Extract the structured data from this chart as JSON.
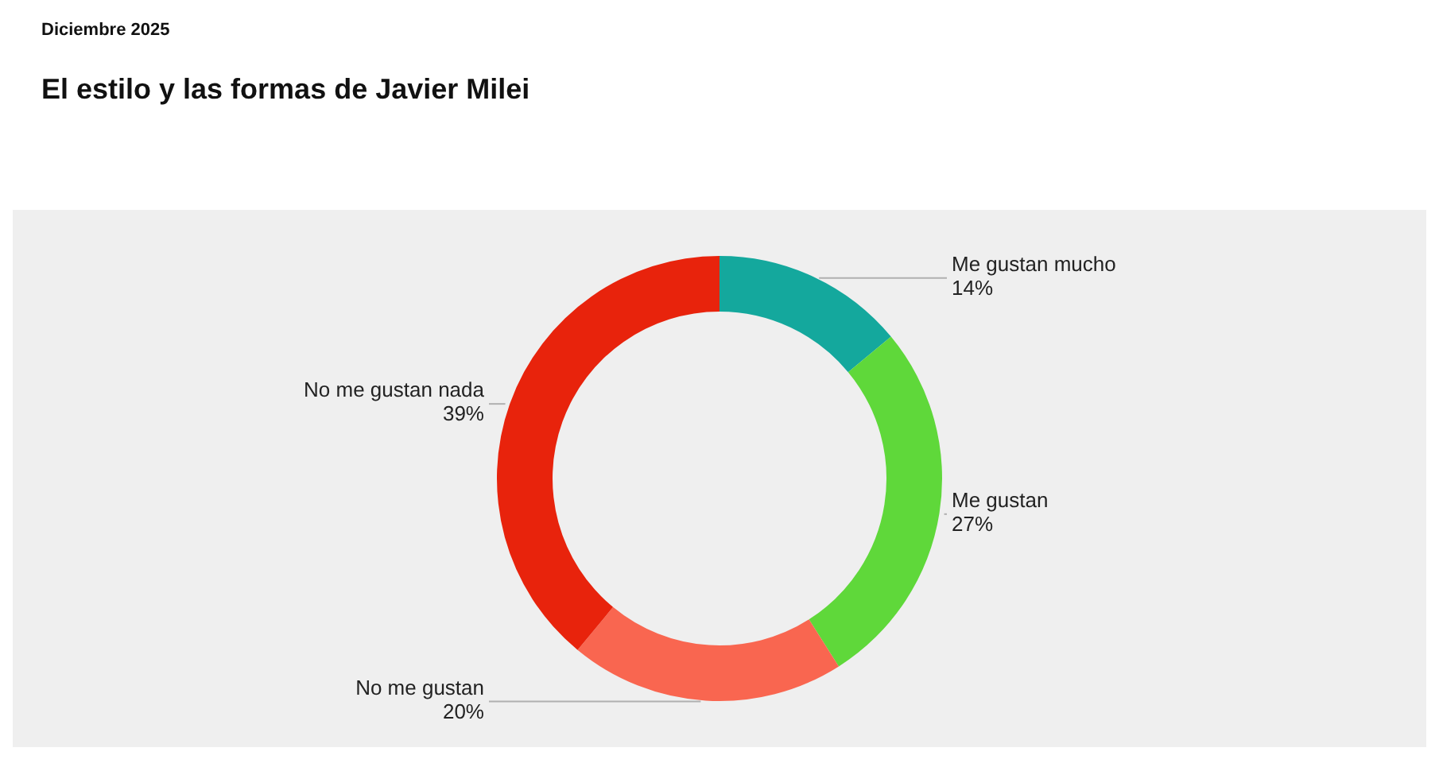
{
  "chart_data": {
    "type": "donut",
    "title": "El estilo y las formas de Javier Milei",
    "subtitle": "Diciembre 2025",
    "categories": [
      "Me gustan mucho",
      "Me gustan",
      "No me gustan",
      "No me gustan nada"
    ],
    "values": [
      14,
      27,
      20,
      39
    ],
    "colors": [
      "#14a89d",
      "#5fd83a",
      "#f96650",
      "#e8230c"
    ],
    "value_labels": [
      "14%",
      "27%",
      "20%",
      "39%"
    ],
    "legend": false
  }
}
